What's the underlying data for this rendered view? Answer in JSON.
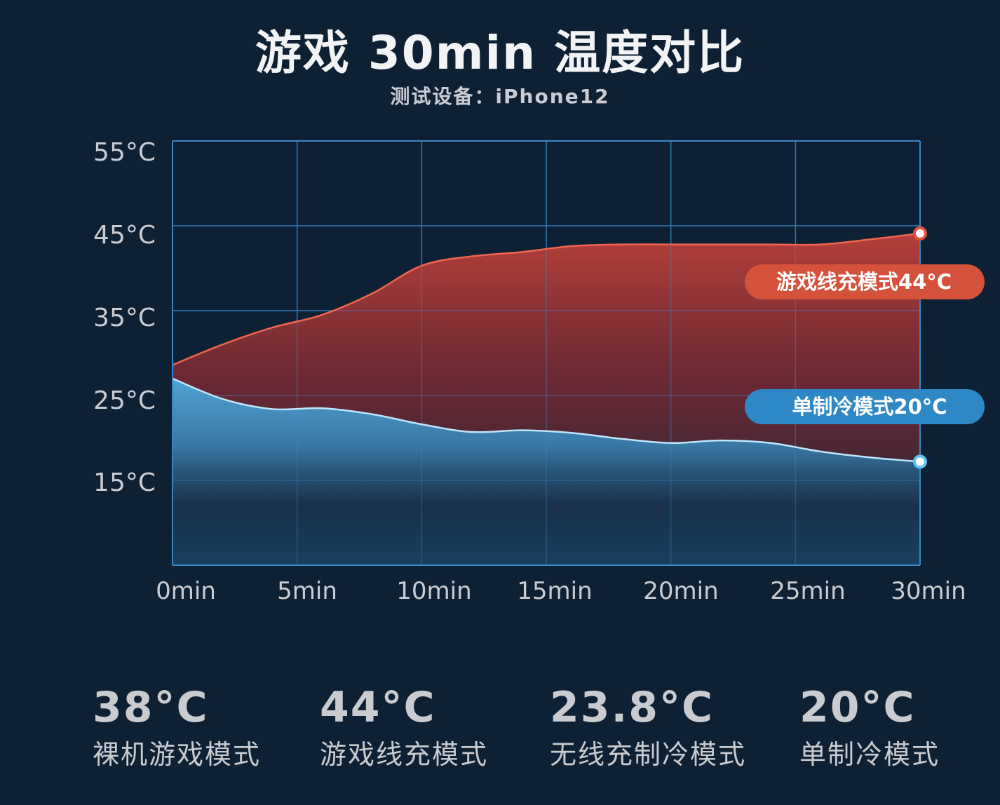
{
  "header": {
    "title": "游戏 30min 温度对比",
    "subtitle": "测试设备：iPhone12"
  },
  "chart_data": {
    "type": "area",
    "title": "游戏 30min 温度对比",
    "subtitle": "测试设备：iPhone12",
    "x_labels": [
      "0min",
      "5min",
      "10min",
      "15min",
      "20min",
      "25min",
      "30min"
    ],
    "y_tick_labels": [
      "55°C",
      "45°C",
      "35°C",
      "25°C",
      "15°C"
    ],
    "y_ticks": [
      55,
      45,
      35,
      25,
      15
    ],
    "ylim": [
      5,
      55
    ],
    "xlim": [
      0,
      30
    ],
    "grid": true,
    "series": [
      {
        "name": "游戏线充模式44°C",
        "color": "#e0533d",
        "x": [
          0,
          2,
          4,
          6,
          8,
          10,
          12,
          14,
          16,
          18,
          20,
          22,
          24,
          26,
          28,
          30
        ],
        "y": [
          28.6,
          31.0,
          33.0,
          34.5,
          37.0,
          40.3,
          41.4,
          41.9,
          42.6,
          42.8,
          42.8,
          42.8,
          42.8,
          42.8,
          43.4,
          44.1
        ]
      },
      {
        "name": "单制冷模式20°C",
        "color": "#5ec3ef",
        "x": [
          0,
          2,
          4,
          6,
          8,
          10,
          12,
          14,
          16,
          18,
          20,
          22,
          24,
          26,
          28,
          30
        ],
        "y": [
          27.0,
          24.6,
          23.4,
          23.5,
          22.8,
          21.6,
          20.7,
          20.9,
          20.6,
          19.9,
          19.4,
          19.7,
          19.4,
          18.4,
          17.7,
          17.2
        ]
      }
    ],
    "callouts": [
      {
        "text": "游戏线充模式44°C",
        "color": "#d4513c"
      },
      {
        "text": "单制冷模式20°C",
        "color": "#2f88c6"
      }
    ]
  },
  "stats": [
    {
      "value": "38°C",
      "label": "裸机游戏模式"
    },
    {
      "value": "44°C",
      "label": "游戏线充模式"
    },
    {
      "value": "23.8°C",
      "label": "无线充制冷模式"
    },
    {
      "value": "20°C",
      "label": "单制冷模式"
    }
  ]
}
